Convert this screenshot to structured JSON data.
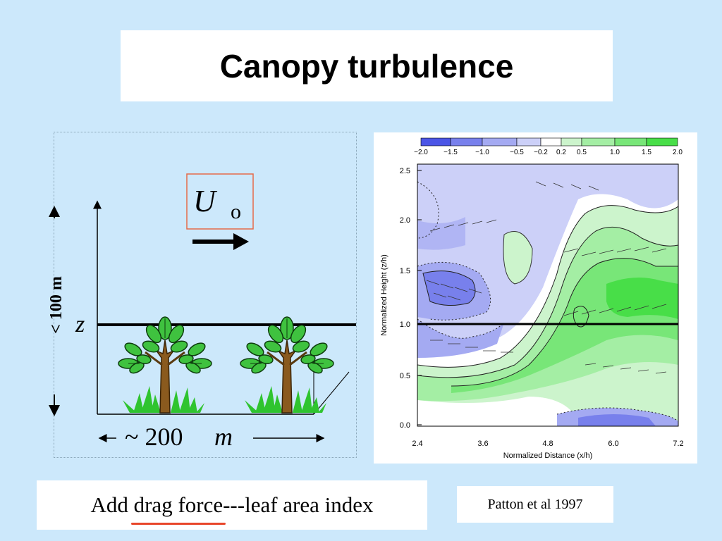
{
  "slide": {
    "title": "Canopy turbulence",
    "caption_prefix": "Add ",
    "caption_underlined": "drag force",
    "caption_suffix": "---leaf area index",
    "citation": "Patton et al 1997"
  },
  "diagram": {
    "height_label": "< 100 m",
    "z_label": "z",
    "velocity_symbol": "U",
    "velocity_subscript": "o",
    "width_label_prefix": "~ 200",
    "width_label_unit": "m"
  },
  "plot": {
    "xlabel": "Normalized Distance (x/h)",
    "ylabel": "Normalized Height (z/h)",
    "x_ticks": [
      "2.4",
      "3.6",
      "4.8",
      "6.0",
      "7.2"
    ],
    "y_ticks": [
      "0.0",
      "0.5",
      "1.0",
      "1.5",
      "2.0",
      "2.5"
    ],
    "colorbar_ticks": [
      "−2.0",
      "−1.5",
      "−1.0",
      "−0.5",
      "−0.2",
      "0.2",
      "0.5",
      "1.0",
      "1.5",
      "2.0"
    ],
    "colorbar_colors": [
      "#4b55e6",
      "#7880ec",
      "#a4aaf2",
      "#ccd0f8",
      "#ffffff",
      "#ccf4cc",
      "#a4eea4",
      "#78e678",
      "#48de48"
    ]
  }
}
